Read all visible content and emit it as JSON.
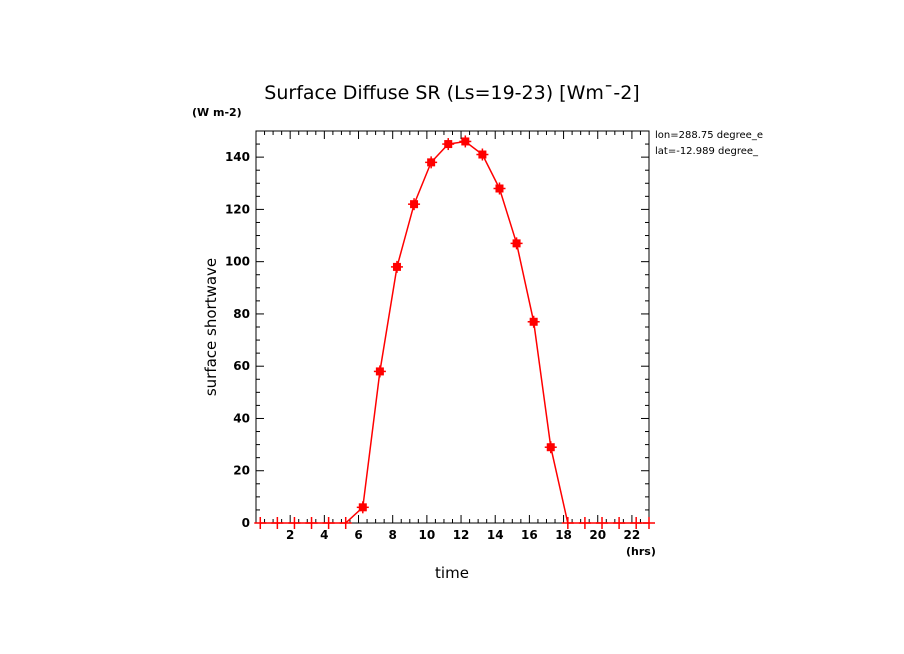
{
  "chart_data": {
    "type": "line",
    "title": "Surface Diffuse SR (Ls=19-23) [Wm¯-2]",
    "xlabel": "time",
    "ylabel": "surface shortwave",
    "x_units": "(hrs)",
    "y_units": "(W m-2)",
    "annotations": [
      "lon=288.75 degree_e",
      "lat=-12.989 degree_"
    ],
    "xlim": [
      0,
      23
    ],
    "ylim": [
      0,
      150
    ],
    "x_ticks": [
      2,
      4,
      6,
      8,
      10,
      12,
      14,
      16,
      18,
      20,
      22
    ],
    "y_ticks": [
      0,
      20,
      40,
      60,
      80,
      100,
      120,
      140
    ],
    "grid": false,
    "series_color": "#ff0000",
    "series": [
      {
        "x": [
          0.25,
          1.25,
          2.25,
          3.25,
          4.25,
          5.25,
          6.25,
          7.25,
          8.25,
          9.25,
          10.25,
          11.25,
          12.25,
          13.25,
          14.25,
          15.25,
          16.25,
          17.25,
          18.25,
          19.25,
          20.25,
          21.25,
          22.25,
          23.0
        ],
        "values": [
          0,
          0,
          0,
          0,
          0,
          0,
          6,
          58,
          98,
          122,
          138,
          145,
          146,
          141,
          128,
          107,
          77,
          29,
          0,
          0,
          0,
          0,
          0,
          0
        ]
      }
    ]
  }
}
